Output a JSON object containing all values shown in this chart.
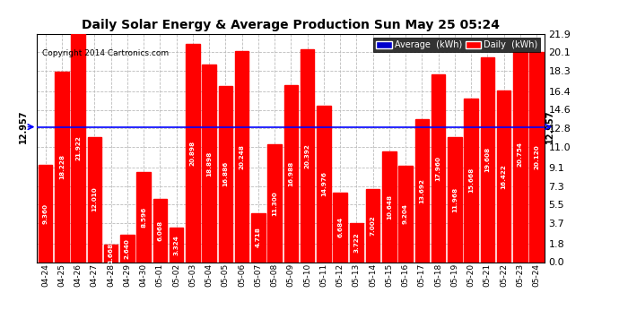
{
  "title": "Daily Solar Energy & Average Production Sun May 25 05:24",
  "copyright": "Copyright 2014 Cartronics.com",
  "average_line": 12.957,
  "average_label": "12.957",
  "bar_color": "#FF0000",
  "average_line_color": "#0000FF",
  "background_color": "#FFFFFF",
  "plot_bg_color": "#FFFFFF",
  "grid_color": "#BBBBBB",
  "ylim": [
    0.0,
    21.9
  ],
  "yticks": [
    0.0,
    1.8,
    3.7,
    5.5,
    7.3,
    9.1,
    11.0,
    12.8,
    14.6,
    16.4,
    18.3,
    20.1,
    21.9
  ],
  "legend_avg_color": "#0000CC",
  "legend_daily_color": "#FF0000",
  "categories": [
    "04-24",
    "04-25",
    "04-26",
    "04-27",
    "04-28",
    "04-29",
    "04-30",
    "05-01",
    "05-02",
    "05-03",
    "05-04",
    "05-05",
    "05-06",
    "05-07",
    "05-08",
    "05-09",
    "05-10",
    "05-11",
    "05-12",
    "05-13",
    "05-14",
    "05-15",
    "05-16",
    "05-17",
    "05-18",
    "05-19",
    "05-20",
    "05-21",
    "05-22",
    "05-23",
    "05-24"
  ],
  "values": [
    9.36,
    18.228,
    21.922,
    12.01,
    1.668,
    2.64,
    8.596,
    6.068,
    3.324,
    20.898,
    18.898,
    16.886,
    20.248,
    4.718,
    11.3,
    16.988,
    20.392,
    14.976,
    6.684,
    3.722,
    7.002,
    10.648,
    9.204,
    13.692,
    17.96,
    11.968,
    15.668,
    19.608,
    16.422,
    20.754,
    20.12
  ]
}
